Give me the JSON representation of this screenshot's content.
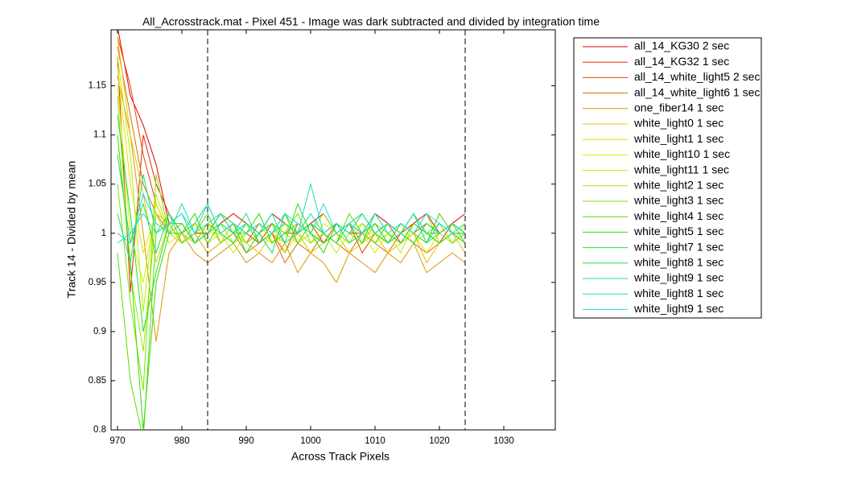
{
  "chart_data": {
    "type": "line",
    "title": "All_Acrosstrack.mat - Pixel 451 - Image was dark subtracted and divided by integration time",
    "x_label": "Across Track Pixels",
    "y_label": "Track 14 - Divided by mean",
    "x": [
      970,
      972,
      974,
      976,
      978,
      980,
      982,
      984,
      986,
      988,
      990,
      992,
      994,
      996,
      998,
      1000,
      1002,
      1004,
      1006,
      1008,
      1010,
      1012,
      1014,
      1016,
      1018,
      1020,
      1022,
      1024
    ],
    "xlim": [
      969,
      1038
    ],
    "xticks": [
      970,
      980,
      990,
      1000,
      1010,
      1020,
      1030
    ],
    "ylim": [
      0.8,
      1.207
    ],
    "yticks": [
      0.8,
      0.85,
      0.9,
      0.95,
      1,
      1.05,
      1.1,
      1.15
    ],
    "vlines": [
      984,
      1024
    ],
    "vline_style": "dashed",
    "legend": "outside-right",
    "series": [
      {
        "name": "all_14_KG30 2 sec",
        "color": "#e00000",
        "values": [
          1.21,
          1.14,
          1.11,
          1.07,
          1.01,
          0.99,
          1.0,
          1.0,
          1.01,
          1.02,
          1.01,
          1.0,
          1.02,
          1.01,
          1.0,
          1.01,
          1.02,
          1.0,
          1.01,
          1.0,
          1.02,
          1.01,
          1.0,
          1.01,
          1.02,
          1.0,
          1.01,
          1.02
        ]
      },
      {
        "name": "all_14_KG32 1 sec",
        "color": "#e02800",
        "values": [
          1.18,
          0.94,
          1.1,
          1.05,
          1.02,
          1.0,
          0.99,
          1.01,
          1.0,
          1.01,
          1.0,
          0.99,
          1.01,
          1.0,
          1.0,
          1.01,
          0.99,
          1.01,
          1.0,
          1.0,
          1.01,
          0.99,
          1.0,
          1.01,
          1.0,
          0.99,
          1.01,
          1.0
        ]
      },
      {
        "name": "all_14_white_light5 2 sec",
        "color": "#e04800",
        "values": [
          1.2,
          1.15,
          1.08,
          1.03,
          1.0,
          1.01,
          0.99,
          1.0,
          1.02,
          1.0,
          0.99,
          1.01,
          1.0,
          0.98,
          1.01,
          1.0,
          0.99,
          1.0,
          1.01,
          0.98,
          1.0,
          1.01,
          0.99,
          1.0,
          1.01,
          1.0,
          0.99,
          1.0
        ]
      },
      {
        "name": "all_14_white_light6 1 sec",
        "color": "#d87000",
        "values": [
          1.19,
          1.12,
          1.05,
          1.02,
          1.0,
          0.99,
          1.0,
          0.98,
          0.99,
          1.0,
          0.98,
          0.99,
          1.0,
          0.97,
          0.99,
          0.98,
          1.0,
          0.99,
          0.98,
          1.0,
          0.99,
          0.98,
          1.0,
          0.99,
          0.98,
          0.99,
          1.0,
          0.99
        ]
      },
      {
        "name": "one_fiber14 1 sec",
        "color": "#d89800",
        "values": [
          1.16,
          1.1,
          1.0,
          0.89,
          0.98,
          1.0,
          0.98,
          0.97,
          0.98,
          0.99,
          0.97,
          0.98,
          0.97,
          0.99,
          0.96,
          0.98,
          0.97,
          0.95,
          0.98,
          0.97,
          0.96,
          0.98,
          0.97,
          0.99,
          0.96,
          0.97,
          0.98,
          0.97
        ]
      },
      {
        "name": "white_light0 1 sec",
        "color": "#e8c400",
        "values": [
          1.2,
          1.1,
          1.04,
          0.97,
          1.01,
          0.99,
          1.0,
          0.98,
          0.99,
          1.01,
          0.99,
          0.98,
          1.0,
          0.99,
          1.0,
          0.98,
          0.99,
          1.0,
          0.98,
          0.99,
          1.0,
          0.98,
          0.99,
          1.0,
          0.97,
          0.99,
          1.0,
          0.98
        ]
      },
      {
        "name": "white_light1 1 sec",
        "color": "#e8e000",
        "values": [
          1.17,
          1.05,
          0.98,
          1.02,
          0.99,
          1.0,
          1.01,
          0.99,
          1.0,
          0.99,
          1.01,
          1.0,
          0.99,
          1.01,
          1.0,
          0.99,
          1.0,
          1.01,
          0.99,
          1.0,
          1.0,
          0.99,
          1.01,
          1.0,
          0.98,
          1.0,
          1.01,
          0.99
        ]
      },
      {
        "name": "white_light10 1 sec",
        "color": "#d4f000",
        "values": [
          1.15,
          1.0,
          0.95,
          1.03,
          1.0,
          0.99,
          1.0,
          1.01,
          0.99,
          1.0,
          0.99,
          1.0,
          1.01,
          0.98,
          1.0,
          0.99,
          1.01,
          1.0,
          0.99,
          1.0,
          0.98,
          1.0,
          1.01,
          0.99,
          1.0,
          0.99,
          1.0,
          1.0
        ]
      },
      {
        "name": "white_light11 1 sec",
        "color": "#bcf000",
        "values": [
          1.18,
          1.08,
          0.92,
          1.04,
          1.0,
          1.0,
          0.99,
          1.0,
          1.0,
          0.98,
          1.0,
          1.01,
          0.99,
          1.0,
          0.99,
          1.01,
          1.0,
          0.98,
          1.0,
          1.01,
          0.99,
          1.0,
          0.98,
          1.01,
          1.0,
          1.0,
          0.99,
          1.01
        ]
      },
      {
        "name": "white_light2 1 sec",
        "color": "#9ce800",
        "values": [
          1.14,
          0.96,
          0.88,
          1.02,
          1.01,
          0.99,
          1.01,
          1.0,
          1.01,
          0.99,
          1.0,
          1.01,
          1.0,
          1.01,
          0.99,
          1.0,
          1.02,
          1.0,
          0.99,
          1.01,
          1.0,
          0.99,
          1.01,
          1.0,
          1.02,
          0.99,
          1.0,
          1.0
        ]
      },
      {
        "name": "white_light3 1 sec",
        "color": "#7ce400",
        "values": [
          1.05,
          0.93,
          0.84,
          1.06,
          1.0,
          1.01,
          0.99,
          1.01,
          1.0,
          1.01,
          0.99,
          1.0,
          1.01,
          1.0,
          1.02,
          0.99,
          1.0,
          1.01,
          1.0,
          0.99,
          1.01,
          1.0,
          0.99,
          1.01,
          1.0,
          1.01,
          0.99,
          1.0
        ]
      },
      {
        "name": "white_light4 1 sec",
        "color": "#50e000",
        "values": [
          0.98,
          0.85,
          0.79,
          1.0,
          1.02,
          0.99,
          1.0,
          1.02,
          0.99,
          1.0,
          1.01,
          0.99,
          1.0,
          1.02,
          0.99,
          1.01,
          1.0,
          0.99,
          1.02,
          1.0,
          0.99,
          1.01,
          1.0,
          1.02,
          0.99,
          1.0,
          1.01,
          0.99
        ]
      },
      {
        "name": "white_light5 1 sec",
        "color": "#30dc00",
        "values": [
          1.1,
          0.97,
          0.8,
          0.95,
          1.0,
          1.0,
          1.02,
          0.99,
          1.01,
          1.0,
          1.0,
          1.02,
          0.99,
          1.0,
          1.01,
          1.0,
          0.98,
          1.01,
          1.0,
          1.02,
          1.0,
          0.99,
          1.01,
          1.0,
          0.99,
          1.02,
          1.0,
          1.0
        ]
      },
      {
        "name": "white_light7 1 sec",
        "color": "#20e020",
        "values": [
          1.12,
          1.02,
          0.9,
          0.96,
          1.01,
          1.01,
          0.99,
          1.0,
          1.02,
          1.01,
          0.98,
          1.0,
          1.01,
          0.99,
          1.03,
          1.0,
          0.99,
          1.0,
          1.01,
          0.99,
          1.02,
          1.0,
          0.99,
          1.01,
          1.0,
          0.99,
          1.0,
          0.99
        ]
      },
      {
        "name": "white_light8 1 sec",
        "color": "#20dc50",
        "values": [
          1.08,
          0.99,
          1.03,
          0.98,
          1.02,
          1.0,
          1.01,
          1.03,
          1.0,
          0.99,
          1.01,
          1.0,
          0.98,
          1.02,
          1.0,
          1.01,
          1.0,
          0.99,
          1.01,
          1.02,
          1.0,
          1.01,
          1.0,
          0.99,
          1.01,
          1.0,
          1.01,
          1.0
        ]
      },
      {
        "name": "white_light9 1 sec",
        "color": "#20dc80",
        "values": [
          1.02,
          0.97,
          1.06,
          1.0,
          1.01,
          1.02,
          0.99,
          1.0,
          1.01,
          1.0,
          1.02,
          0.99,
          1.0,
          1.01,
          1.0,
          1.02,
          1.0,
          1.01,
          0.99,
          1.0,
          1.01,
          0.99,
          1.0,
          1.02,
          1.0,
          1.0,
          1.01,
          1.0
        ]
      },
      {
        "name": "white_light8 1 sec",
        "color": "#20dcb0",
        "values": [
          1.0,
          0.99,
          1.04,
          1.01,
          1.0,
          1.03,
          1.0,
          1.01,
          1.02,
          1.0,
          1.01,
          1.0,
          1.02,
          0.99,
          1.0,
          1.05,
          1.0,
          1.01,
          1.0,
          1.02,
          1.0,
          1.01,
          1.0,
          1.02,
          0.99,
          1.01,
          1.0,
          1.01
        ]
      },
      {
        "name": "white_light9 1 sec",
        "color": "#20dcdc",
        "values": [
          0.99,
          1.0,
          1.02,
          1.0,
          1.01,
          1.02,
          1.0,
          1.03,
          1.0,
          1.01,
          1.0,
          1.01,
          1.0,
          1.02,
          1.01,
          1.0,
          1.03,
          1.0,
          1.01,
          1.0,
          1.02,
          1.0,
          1.01,
          1.0,
          1.02,
          1.01,
          1.0,
          1.0
        ]
      }
    ]
  }
}
